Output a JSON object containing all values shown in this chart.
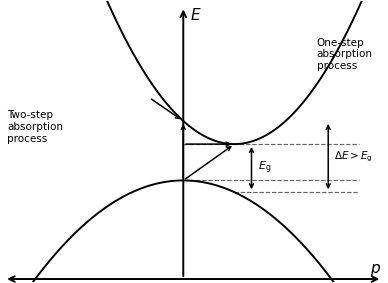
{
  "bg_color": "#ffffff",
  "text_color": "#000000",
  "curve_color": "#000000",
  "axis_color": "#000000",
  "dashed_color": "#666666",
  "arrow_color": "#000000",
  "xlabel": "p",
  "ylabel": "E",
  "xlim": [
    -3.2,
    3.5
  ],
  "ylim": [
    -2.2,
    3.2
  ],
  "cond_min_x": 0.9,
  "cond_min_y": 0.45,
  "cond_curve_a": 0.55,
  "val_max_x": 0.0,
  "val_max_y": -0.25,
  "val_curve_a": 0.28,
  "label_onestep": "One-step\nabsorption\nprocess",
  "label_twostep": "Two-step\nabsorption\nprocess"
}
